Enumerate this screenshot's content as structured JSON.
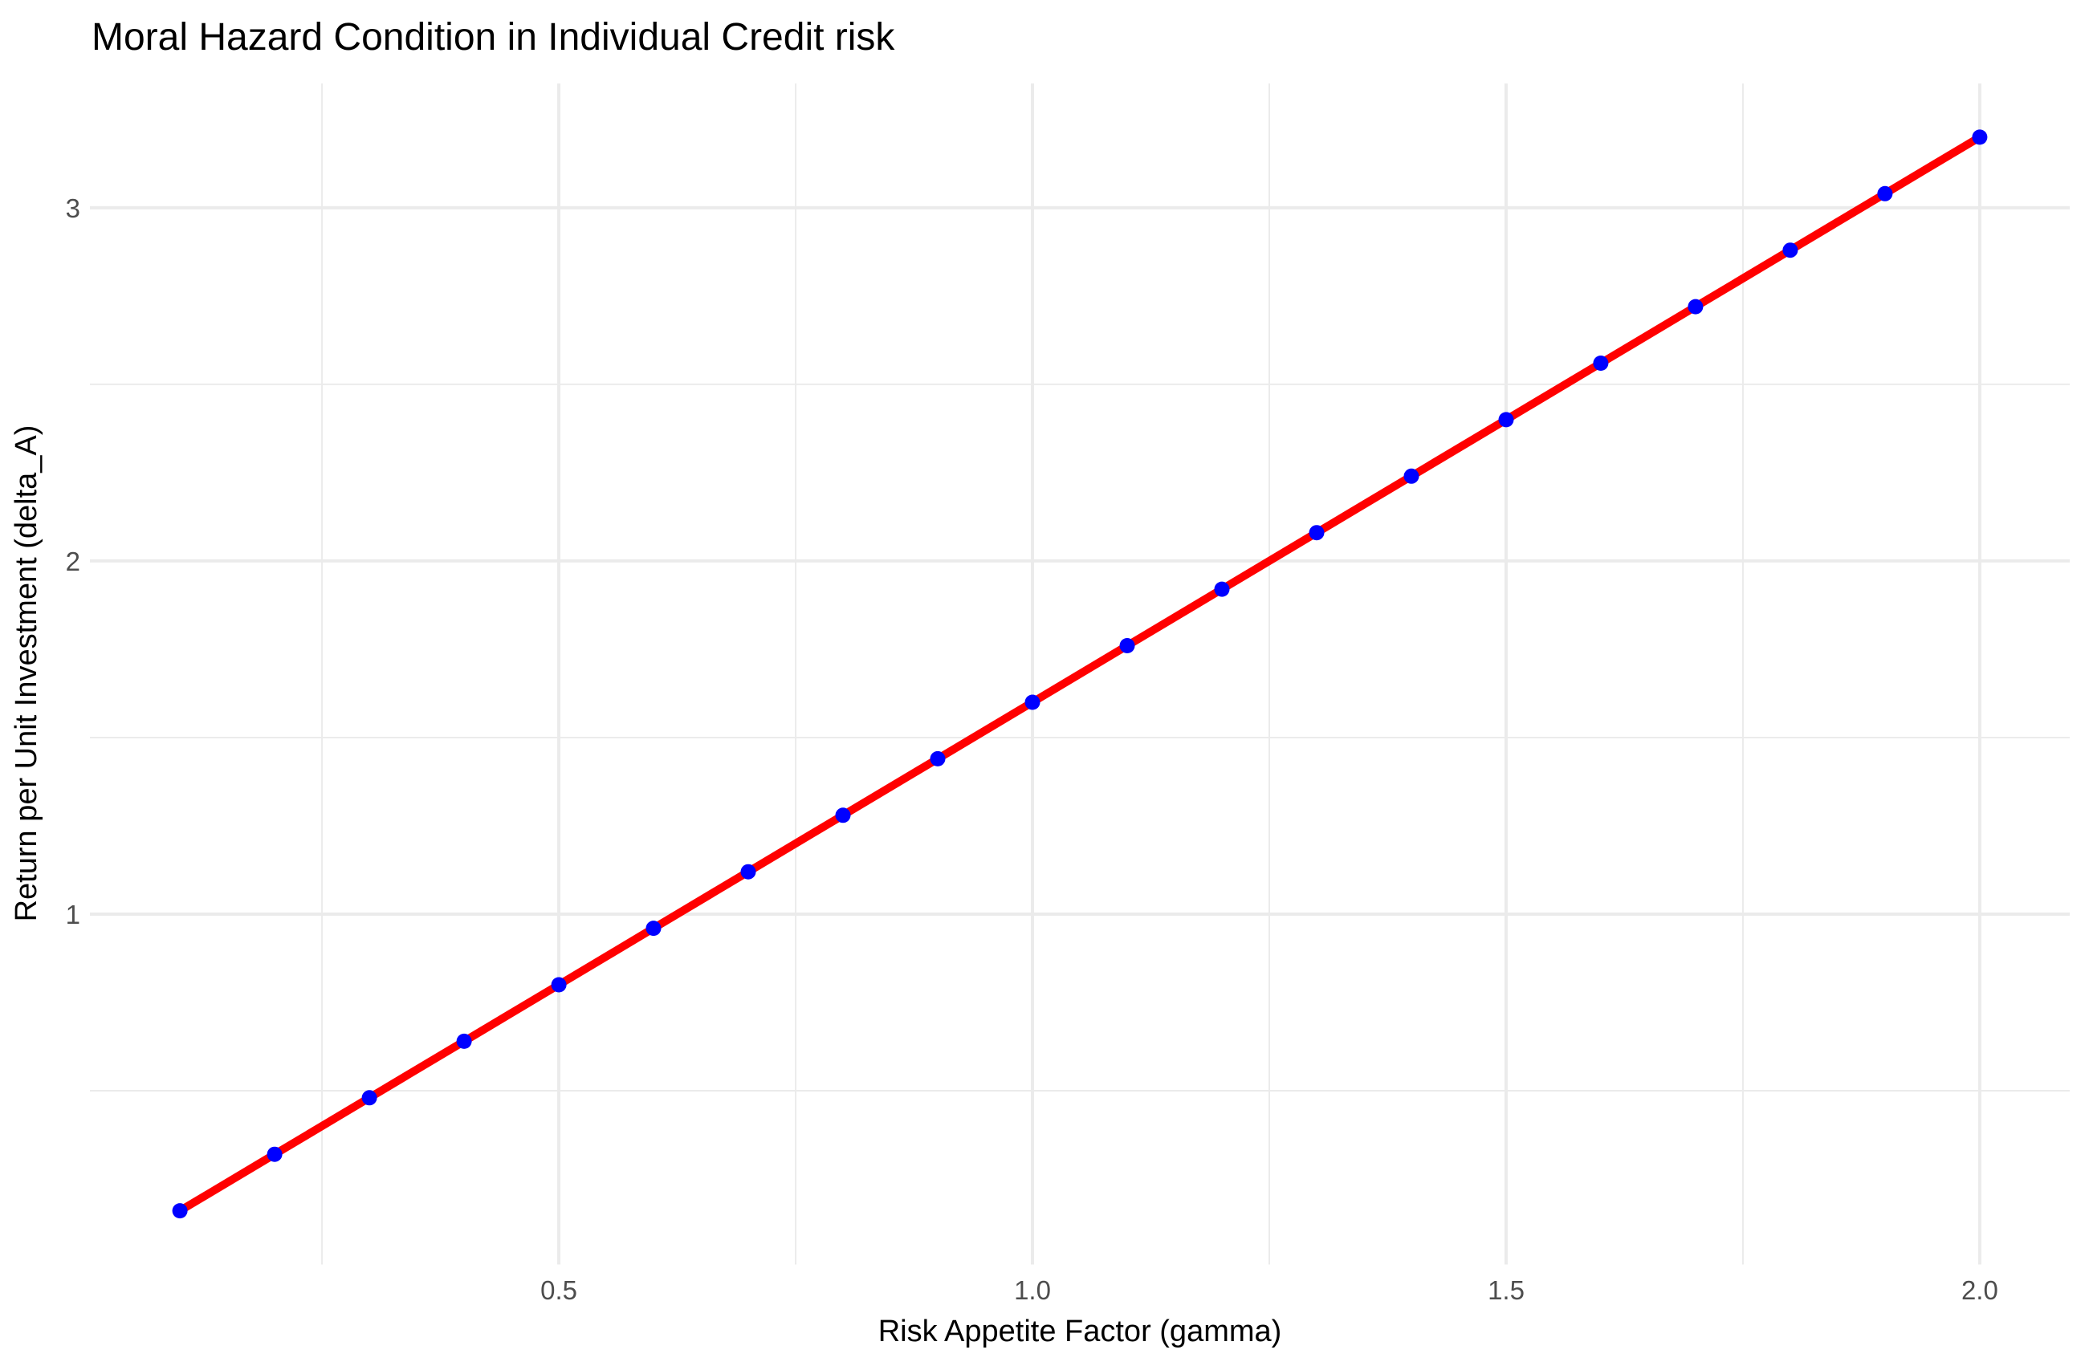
{
  "chart_data": {
    "type": "line",
    "title": "Moral Hazard Condition in Individual Credit risk",
    "xlabel": "Risk Appetite Factor (gamma)",
    "ylabel": "Return per Unit Investment (delta_A)",
    "x": [
      0.1,
      0.2,
      0.3,
      0.4,
      0.5,
      0.6,
      0.7,
      0.8,
      0.9,
      1.0,
      1.1,
      1.2,
      1.3,
      1.4,
      1.5,
      1.6,
      1.7,
      1.8,
      1.9,
      2.0
    ],
    "series": [
      {
        "name": "delta_A",
        "values": [
          0.16,
          0.32,
          0.48,
          0.64,
          0.8,
          0.96,
          1.12,
          1.28,
          1.44,
          1.6,
          1.76,
          1.92,
          2.08,
          2.24,
          2.4,
          2.56,
          2.72,
          2.88,
          3.04,
          3.2
        ]
      }
    ],
    "x_ticks": {
      "values": [
        0.5,
        1.0,
        1.5,
        2.0
      ],
      "labels": [
        "0.5",
        "1.0",
        "1.5",
        "2.0"
      ]
    },
    "y_ticks": {
      "values": [
        1,
        2,
        3
      ],
      "labels": [
        "1",
        "2",
        "3"
      ]
    },
    "x_minor_gridlines": [
      0.25,
      0.75,
      1.25,
      1.75
    ],
    "y_minor_gridlines": [
      0.5,
      1.5,
      2.5
    ],
    "xlim": [
      0.005,
      2.095
    ],
    "ylim": [
      0.008,
      3.352
    ],
    "grid": "major+minor",
    "legend_position": "none",
    "marker": "circle",
    "colors": {
      "line": "#FF0000",
      "points": "#0000FF",
      "grid": "#EBEBEB",
      "tick_text": "#4D4D4D",
      "title_text": "#000000",
      "background": "#FFFFFF"
    }
  }
}
